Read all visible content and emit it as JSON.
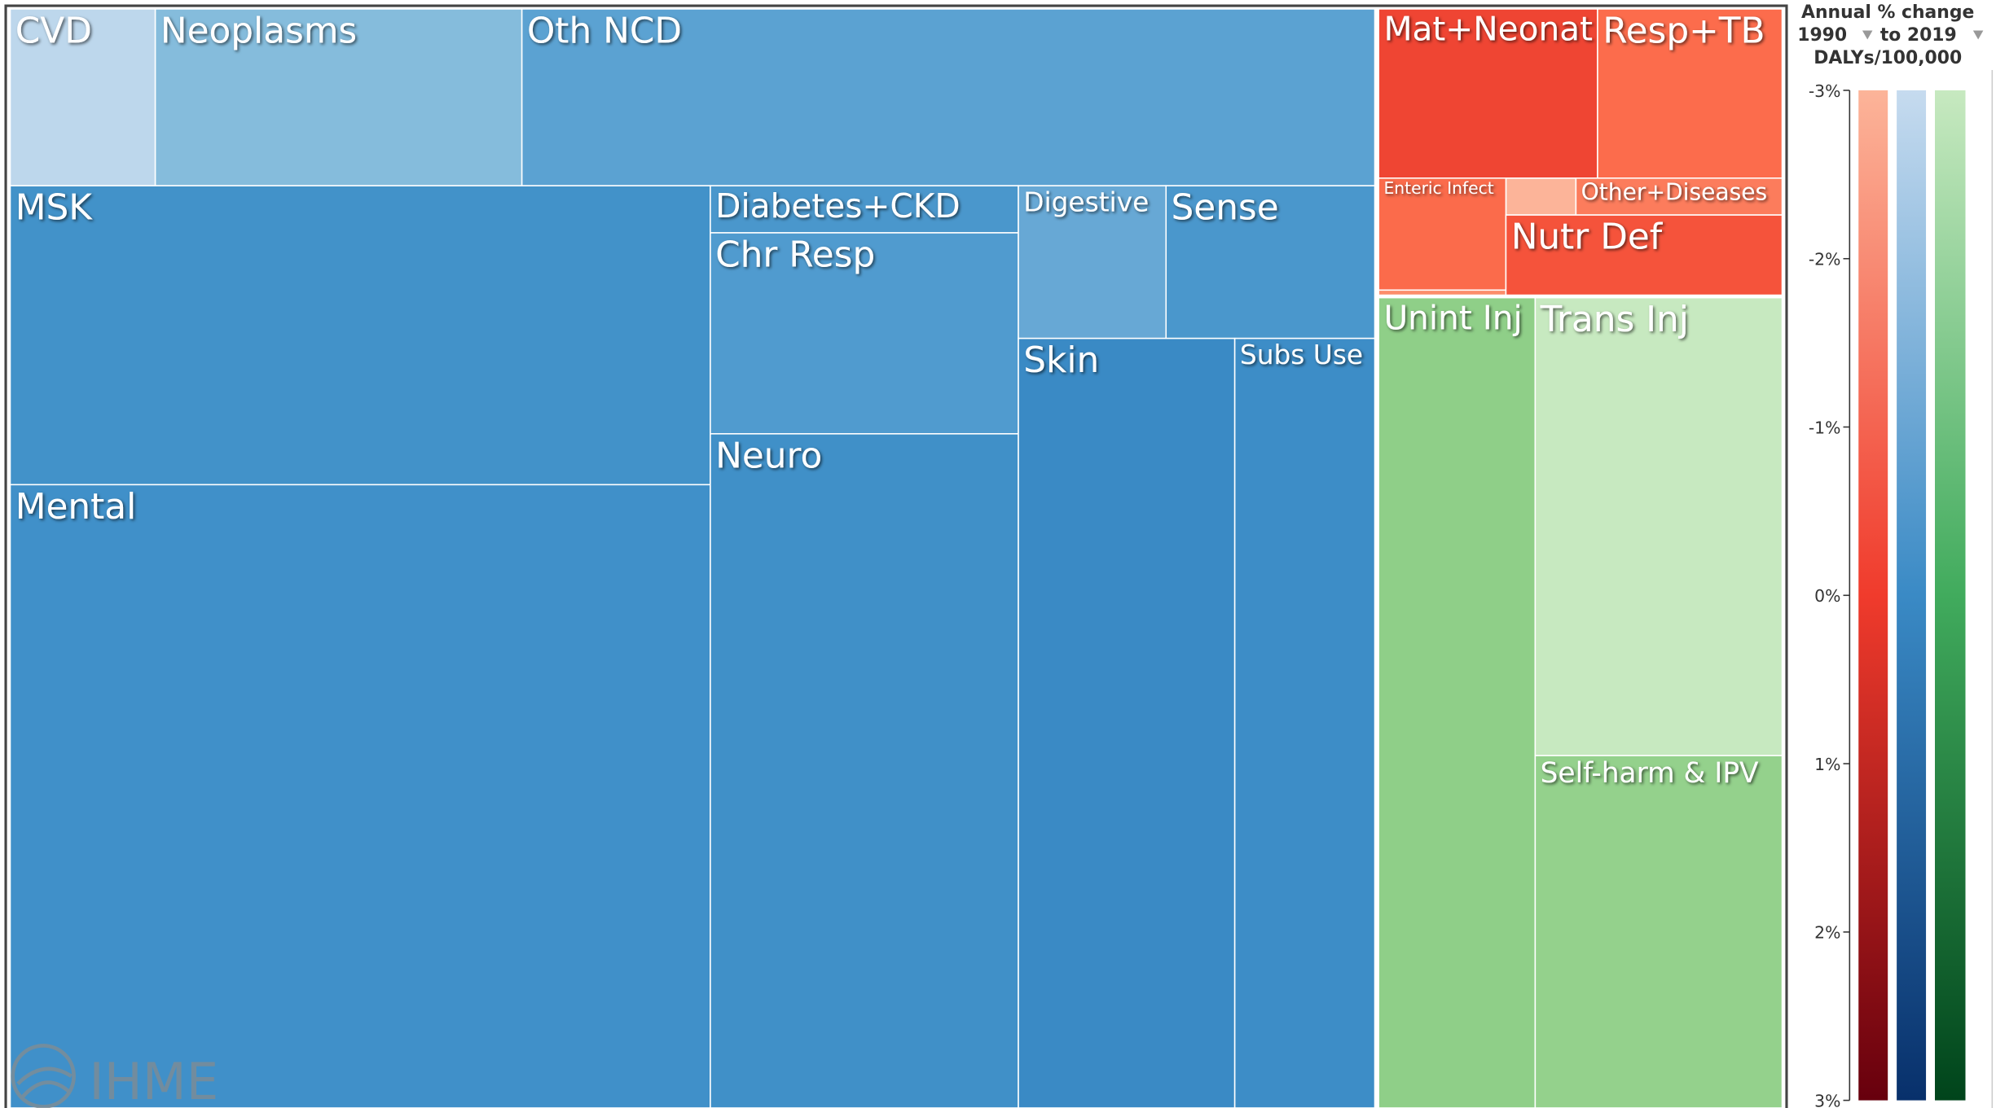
{
  "treemap": {
    "tiles": [
      {
        "label": "CVD"
      },
      {
        "label": "Neoplasms"
      },
      {
        "label": "Oth NCD"
      },
      {
        "label": "MSK"
      },
      {
        "label": "Mental"
      },
      {
        "label": "Diabetes+CKD"
      },
      {
        "label": "Chr Resp"
      },
      {
        "label": "Neuro"
      },
      {
        "label": "Digestive"
      },
      {
        "label": "Sense"
      },
      {
        "label": "Skin"
      },
      {
        "label": "Subs Use"
      },
      {
        "label": "Mat+Neonat"
      },
      {
        "label": "Resp+TB"
      },
      {
        "label": "Enteric Infect"
      },
      {
        "label": "Other+Diseases"
      },
      {
        "label": "Nutr Def"
      },
      {
        "label": "Unint Inj"
      },
      {
        "label": "Trans Inj"
      },
      {
        "label": "Self-harm & IPV"
      }
    ]
  },
  "legend": {
    "title": "Annual % change",
    "start": "1990",
    "end": "to 2019",
    "measure": "DALYs/100,000",
    "ticks": [
      "-3%",
      "-2%",
      "-1%",
      "0%",
      "1%",
      "2%",
      "3%"
    ]
  },
  "logo": "IHME"
}
